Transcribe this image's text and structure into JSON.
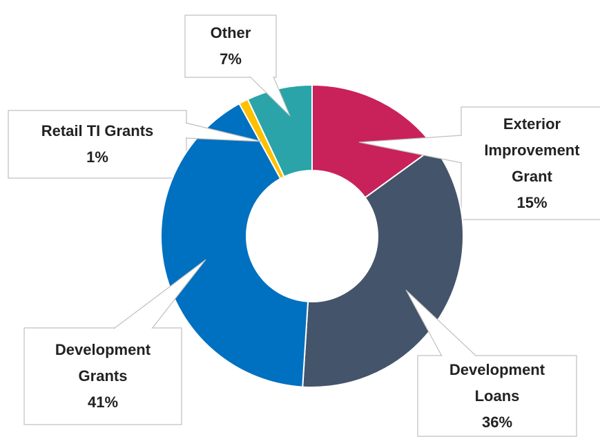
{
  "chart_data": {
    "type": "donut",
    "categories": [
      "Exterior Improvement Grant",
      "Development Loans",
      "Development Grants",
      "Retail TI Grants",
      "Other"
    ],
    "values": [
      15,
      36,
      41,
      1,
      7
    ],
    "value_labels": [
      "15%",
      "36%",
      "41%",
      "1%",
      "7%"
    ],
    "colors": [
      "#c9215a",
      "#44546a",
      "#0070c0",
      "#ffc000",
      "#2aa4a8"
    ]
  }
}
